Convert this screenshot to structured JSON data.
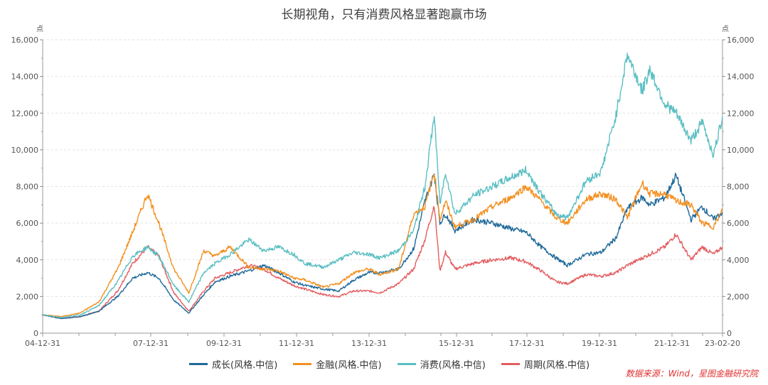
{
  "title": "长期视角，只有消费风格显著跑赢市场",
  "source": "数据来源：Wind，星图金融研究院",
  "chart_data": {
    "type": "line",
    "title": "长期视角，只有消费风格显著跑赢市场",
    "ylabel_left": "点",
    "ylabel_right": "点",
    "ylim": [
      0,
      16000
    ],
    "yticks": [
      "0",
      "2,000",
      "4,000",
      "6,000",
      "8,000",
      "10,000",
      "12,000",
      "14,000",
      "16,000"
    ],
    "xticks": [
      "04-12-31",
      "07-12-31",
      "09-12-31",
      "11-12-31",
      "13-12-31",
      "15-12-31",
      "17-12-31",
      "19-12-31",
      "21-12-31",
      "23-02-20"
    ],
    "grid": "horizontal dashed",
    "legend_position": "bottom",
    "x": [
      2005.0,
      2005.5,
      2006.0,
      2006.5,
      2007.0,
      2007.4,
      2007.8,
      2008.1,
      2008.5,
      2008.9,
      2009.3,
      2009.6,
      2010.0,
      2010.5,
      2010.9,
      2011.3,
      2011.7,
      2012.0,
      2012.5,
      2012.9,
      2013.3,
      2013.7,
      2014.0,
      2014.5,
      2014.9,
      2015.2,
      2015.45,
      2015.6,
      2015.75,
      2016.0,
      2016.5,
      2017.0,
      2017.5,
      2017.9,
      2018.3,
      2018.7,
      2019.0,
      2019.5,
      2019.9,
      2020.3,
      2020.6,
      2021.0,
      2021.2,
      2021.6,
      2021.9,
      2022.3,
      2022.6,
      2022.9,
      2023.14
    ],
    "series": [
      {
        "name": "成长(风格.中信)",
        "color": "#1f6a9a",
        "values": [
          1000,
          800,
          900,
          1200,
          2000,
          3000,
          3300,
          3000,
          1800,
          1100,
          2100,
          2800,
          3100,
          3400,
          3700,
          3300,
          2800,
          2600,
          2400,
          2300,
          2900,
          3300,
          3300,
          3500,
          4600,
          7200,
          8700,
          6000,
          6500,
          5600,
          6200,
          6000,
          5700,
          5500,
          4700,
          4100,
          3700,
          4300,
          4400,
          5200,
          6800,
          7400,
          7000,
          7400,
          8600,
          6200,
          6900,
          6200,
          6600
        ]
      },
      {
        "name": "金融(风格.中信)",
        "color": "#f39020",
        "values": [
          1000,
          900,
          1100,
          1700,
          3500,
          5500,
          7600,
          6000,
          3500,
          2200,
          4500,
          4200,
          4700,
          3600,
          3500,
          3400,
          3000,
          2900,
          2500,
          2700,
          3300,
          3500,
          3200,
          3500,
          6500,
          6900,
          8800,
          6200,
          7200,
          5800,
          6200,
          6900,
          7400,
          8000,
          7200,
          6300,
          6000,
          7300,
          7600,
          7300,
          6300,
          8200,
          7600,
          7600,
          7200,
          7000,
          6000,
          5800,
          6700
        ]
      },
      {
        "name": "消费(风格.中信)",
        "color": "#5bbfc3",
        "values": [
          1000,
          850,
          1000,
          1500,
          2800,
          4200,
          4700,
          4200,
          2600,
          1700,
          3300,
          3800,
          4300,
          5100,
          4500,
          4700,
          4300,
          3800,
          3600,
          4000,
          4400,
          4300,
          4100,
          4500,
          5600,
          8000,
          11900,
          7000,
          8800,
          6500,
          7500,
          8000,
          8500,
          8900,
          7600,
          6500,
          6300,
          8300,
          8800,
          11900,
          15200,
          13200,
          14400,
          12500,
          12000,
          10500,
          11500,
          9700,
          11800
        ]
      },
      {
        "name": "周期(风格.中信)",
        "color": "#e35d60",
        "values": [
          1000,
          800,
          900,
          1200,
          2300,
          3800,
          4700,
          4200,
          2200,
          1200,
          2300,
          3000,
          3300,
          3700,
          3500,
          3000,
          2600,
          2400,
          2100,
          2000,
          2300,
          2300,
          2200,
          2700,
          3500,
          5100,
          7000,
          3400,
          4400,
          3500,
          3800,
          4000,
          4100,
          3900,
          3400,
          2800,
          2700,
          3200,
          3100,
          3300,
          3700,
          4100,
          4300,
          4700,
          5400,
          4000,
          4700,
          4300,
          4700
        ]
      }
    ]
  }
}
